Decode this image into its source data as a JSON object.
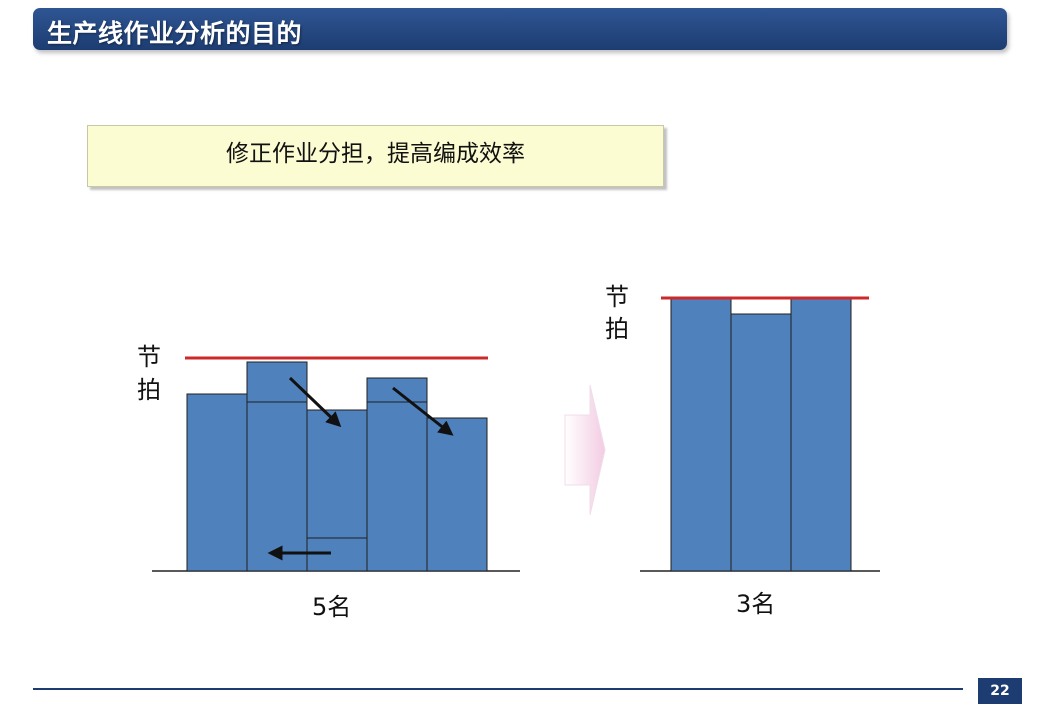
{
  "header": {
    "title": "生产线作业分析的目的"
  },
  "subtitle": "修正作业分担，提高编成效率",
  "left_diagram": {
    "axis_label_top": "节",
    "axis_label_bottom": "拍",
    "caption": "5名"
  },
  "right_diagram": {
    "axis_label_top": "节",
    "axis_label_bottom": "拍",
    "caption": "3名"
  },
  "footer": {
    "page_number": "22"
  },
  "colors": {
    "bar_fill": "#4f81bd",
    "bar_stroke": "#1f1f1f",
    "takt_line": "#cc2a2a",
    "title_bg": "#1d3d72",
    "subtitle_bg": "#fcfcd2"
  }
}
